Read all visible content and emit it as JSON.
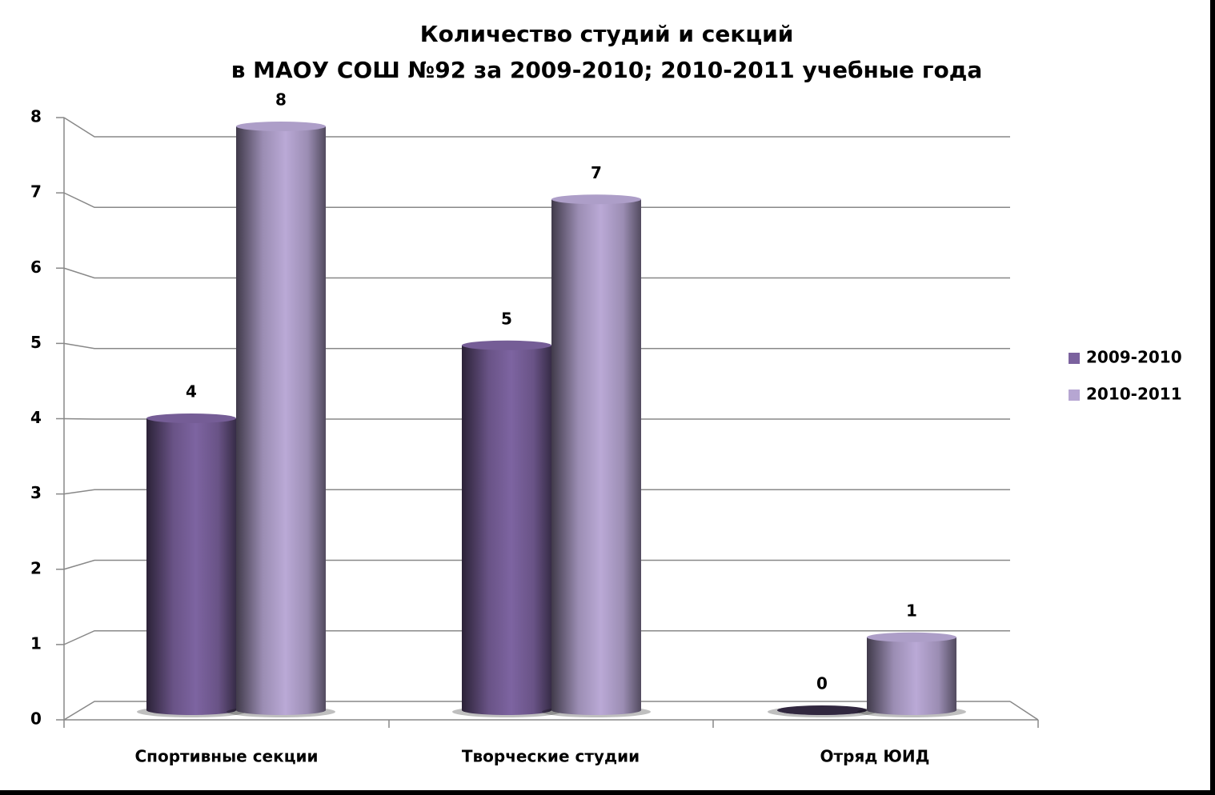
{
  "chart_data": {
    "type": "bar",
    "title": [
      "Количество студий и секций",
      "в МАОУ СОШ №92 за 2009-2010; 2010-2011 учебные года"
    ],
    "categories": [
      "Спортивные секции",
      "Творческие студии",
      "Отряд ЮИД"
    ],
    "series": [
      {
        "name": "2009-2010",
        "color": "#7b629e",
        "values": [
          4,
          5,
          0
        ]
      },
      {
        "name": "2010-2011",
        "color": "#b6a6d2",
        "values": [
          8,
          7,
          1
        ]
      }
    ],
    "ylim": [
      0,
      8
    ],
    "yticks": [
      0,
      1,
      2,
      3,
      4,
      5,
      6,
      7,
      8
    ],
    "grid": true,
    "legend": "right"
  }
}
